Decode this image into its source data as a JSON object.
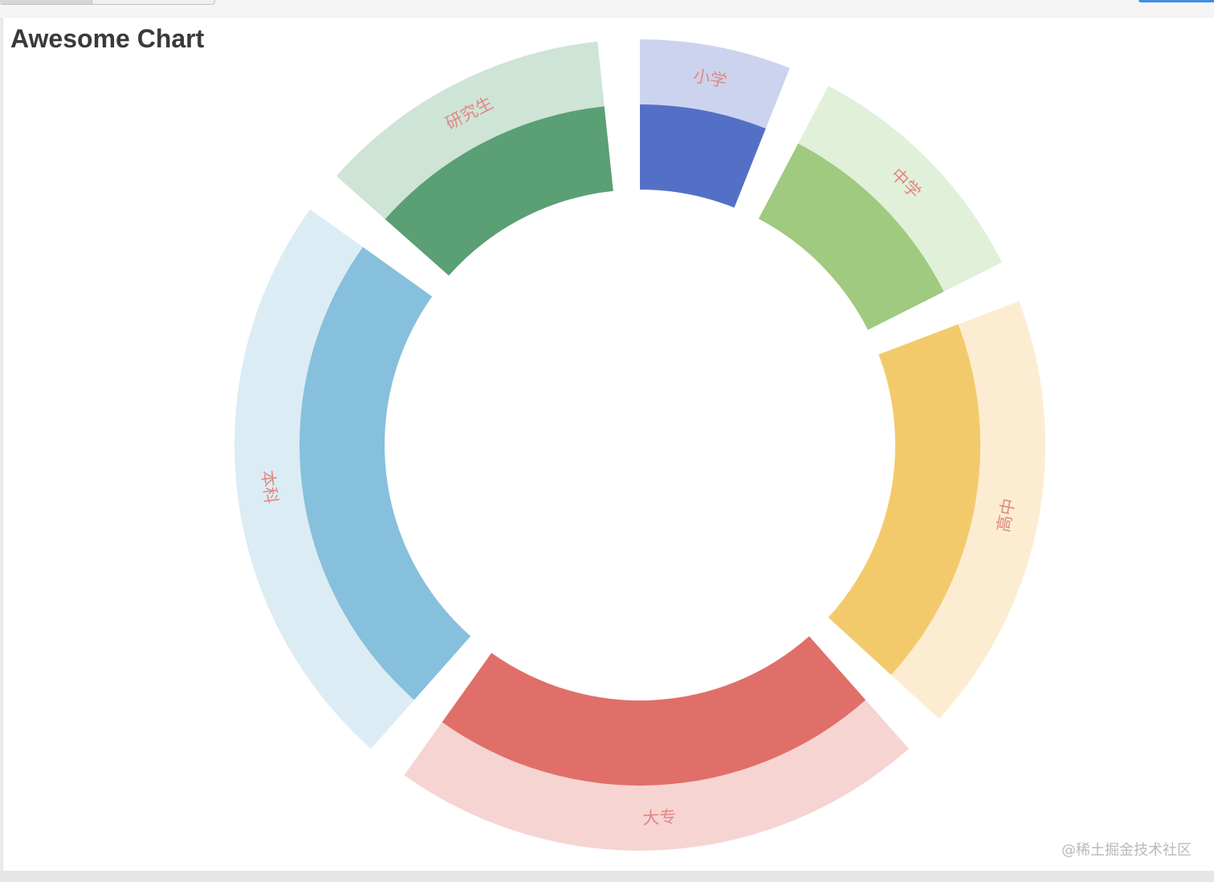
{
  "chart_data": {
    "type": "pie",
    "title": "Awesome Chart",
    "categories": [
      "小学",
      "中学",
      "高中",
      "大专",
      "本科",
      "研究生"
    ],
    "series": [
      {
        "values": [
          8,
          12,
          20,
          24,
          26,
          14
        ]
      },
      {
        "values": [
          8,
          12,
          20,
          24,
          26,
          14
        ]
      }
    ],
    "colors": [
      "#5470c6",
      "#9fca7f",
      "#f3ca6b",
      "#e06f69",
      "#86c0dc",
      "#5b9f75"
    ],
    "outer_colors": [
      "#ccd3ee",
      "#e1f0d8",
      "#fcedd2",
      "#f6d4d2",
      "#dcecf4",
      "#cee4d6"
    ],
    "label_color": "#e08884",
    "legend": false
  },
  "watermark": "@稀土掘金技术社区"
}
